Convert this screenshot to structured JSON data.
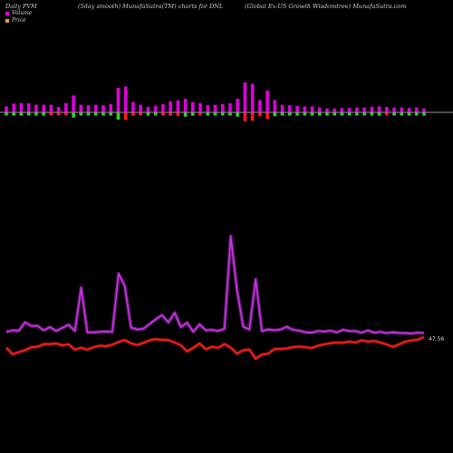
{
  "header": {
    "left": "Daily PVM",
    "middle": "(5day smooth) MunafaSutra(TM) charts for DNL",
    "right": "(Global Ex-US Growth Wisdomtree) MunafaSutra.com"
  },
  "legend": {
    "volume_label": "Volume",
    "price_label": "Price",
    "volume_color": "#e000e0",
    "price_color": "#e8a050"
  },
  "chart_data": {
    "type": "line",
    "title": "",
    "last_value_label": "47.56",
    "colors": {
      "volume_up": "#e000e0",
      "volume_down_red": "#ff1a1a",
      "volume_down_green": "#22dd22",
      "volume_line": "#c832e6",
      "price_line": "#ff1a1a",
      "baseline": "#cccccc"
    },
    "volume_bars": [
      {
        "v": 0.22,
        "d": "green"
      },
      {
        "v": 0.32,
        "d": "green"
      },
      {
        "v": 0.34,
        "d": "green"
      },
      {
        "v": 0.33,
        "d": "green"
      },
      {
        "v": 0.28,
        "d": "green"
      },
      {
        "v": 0.28,
        "d": "green"
      },
      {
        "v": 0.28,
        "d": "red"
      },
      {
        "v": 0.2,
        "d": "red"
      },
      {
        "v": 0.34,
        "d": "red"
      },
      {
        "v": 0.62,
        "d": "green"
      },
      {
        "v": 0.28,
        "d": "green"
      },
      {
        "v": 0.26,
        "d": "green"
      },
      {
        "v": 0.28,
        "d": "green"
      },
      {
        "v": 0.26,
        "d": "green"
      },
      {
        "v": 0.3,
        "d": "green"
      },
      {
        "v": 0.9,
        "d": "green"
      },
      {
        "v": 0.95,
        "d": "red"
      },
      {
        "v": 0.38,
        "d": "red"
      },
      {
        "v": 0.28,
        "d": "red"
      },
      {
        "v": 0.2,
        "d": "green"
      },
      {
        "v": 0.24,
        "d": "green"
      },
      {
        "v": 0.3,
        "d": "red"
      },
      {
        "v": 0.4,
        "d": "red"
      },
      {
        "v": 0.44,
        "d": "red"
      },
      {
        "v": 0.5,
        "d": "green"
      },
      {
        "v": 0.38,
        "d": "green"
      },
      {
        "v": 0.34,
        "d": "red"
      },
      {
        "v": 0.26,
        "d": "green"
      },
      {
        "v": 0.28,
        "d": "green"
      },
      {
        "v": 0.3,
        "d": "green"
      },
      {
        "v": 0.33,
        "d": "green"
      },
      {
        "v": 0.5,
        "d": "green"
      },
      {
        "v": 1.1,
        "d": "red"
      },
      {
        "v": 1.05,
        "d": "red"
      },
      {
        "v": 0.45,
        "d": "red"
      },
      {
        "v": 0.8,
        "d": "red"
      },
      {
        "v": 0.45,
        "d": "green"
      },
      {
        "v": 0.28,
        "d": "green"
      },
      {
        "v": 0.26,
        "d": "green"
      },
      {
        "v": 0.24,
        "d": "green"
      },
      {
        "v": 0.22,
        "d": "green"
      },
      {
        "v": 0.22,
        "d": "green"
      },
      {
        "v": 0.18,
        "d": "green"
      },
      {
        "v": 0.14,
        "d": "green"
      },
      {
        "v": 0.14,
        "d": "green"
      },
      {
        "v": 0.16,
        "d": "green"
      },
      {
        "v": 0.16,
        "d": "green"
      },
      {
        "v": 0.18,
        "d": "green"
      },
      {
        "v": 0.18,
        "d": "green"
      },
      {
        "v": 0.2,
        "d": "green"
      },
      {
        "v": 0.22,
        "d": "green"
      },
      {
        "v": 0.2,
        "d": "red"
      },
      {
        "v": 0.18,
        "d": "green"
      },
      {
        "v": 0.18,
        "d": "green"
      },
      {
        "v": 0.16,
        "d": "green"
      },
      {
        "v": 0.18,
        "d": "green"
      },
      {
        "v": 0.14,
        "d": "green"
      }
    ],
    "volume_line": [
      0.22,
      0.26,
      0.25,
      0.46,
      0.37,
      0.37,
      0.26,
      0.34,
      0.24,
      0.32,
      0.4,
      0.24,
      1.33,
      0.21,
      0.21,
      0.22,
      0.23,
      0.22,
      1.68,
      1.37,
      0.33,
      0.28,
      0.3,
      0.42,
      0.54,
      0.64,
      0.46,
      0.7,
      0.34,
      0.45,
      0.22,
      0.41,
      0.26,
      0.27,
      0.24,
      0.3,
      2.62,
      1.27,
      0.35,
      0.28,
      1.54,
      0.24,
      0.28,
      0.26,
      0.28,
      0.35,
      0.27,
      0.25,
      0.21,
      0.2,
      0.24,
      0.23,
      0.25,
      0.21,
      0.27,
      0.24,
      0.24,
      0.2,
      0.26,
      0.2,
      0.22,
      0.19,
      0.21,
      0.19,
      0.19,
      0.18,
      0.2,
      0.19
    ],
    "price_line": [
      0.24,
      0.03,
      0.1,
      0.16,
      0.26,
      0.27,
      0.36,
      0.36,
      0.38,
      0.32,
      0.35,
      0.18,
      0.24,
      0.18,
      0.26,
      0.31,
      0.29,
      0.34,
      0.43,
      0.49,
      0.38,
      0.33,
      0.4,
      0.48,
      0.52,
      0.49,
      0.49,
      0.41,
      0.32,
      0.12,
      0.24,
      0.38,
      0.19,
      0.27,
      0.24,
      0.36,
      0.24,
      0.05,
      0.16,
      0.18,
      -0.12,
      0.02,
      0.05,
      0.2,
      0.2,
      0.22,
      0.26,
      0.28,
      0.26,
      0.23,
      0.31,
      0.35,
      0.39,
      0.41,
      0.4,
      0.44,
      0.41,
      0.48,
      0.44,
      0.46,
      0.41,
      0.35,
      0.27,
      0.35,
      0.44,
      0.48,
      0.5,
      0.59
    ]
  }
}
